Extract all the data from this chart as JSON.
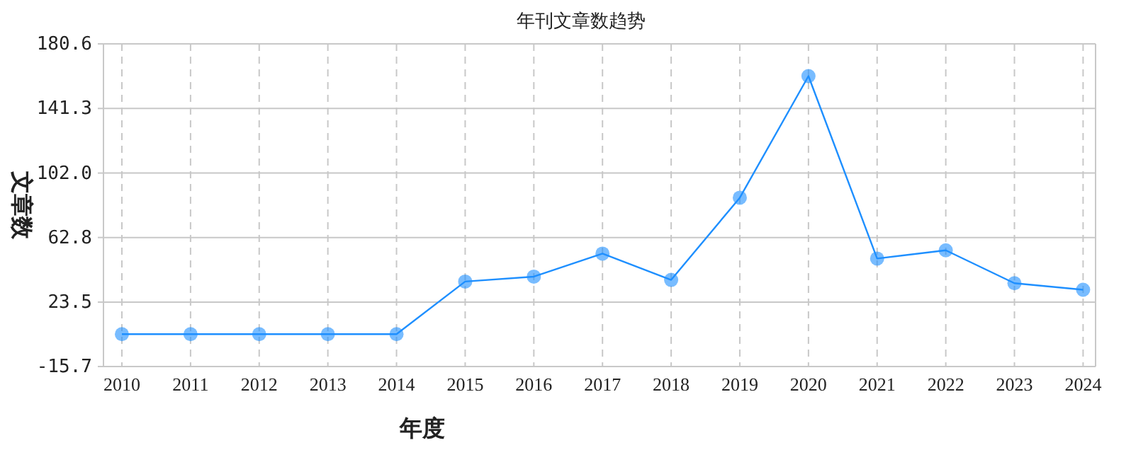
{
  "chart_data": {
    "type": "line",
    "title": "年刊文章数趋势",
    "xlabel": "年度",
    "ylabel": "文章数",
    "categories": [
      "2010",
      "2011",
      "2012",
      "2013",
      "2014",
      "2015",
      "2016",
      "2017",
      "2018",
      "2019",
      "2020",
      "2021",
      "2022",
      "2023",
      "2024"
    ],
    "series": [
      {
        "color": "#1e8fff",
        "values": [
          4,
          4,
          4,
          4,
          4,
          36,
          39,
          53,
          37,
          87,
          161,
          50,
          55,
          35,
          31
        ]
      }
    ],
    "ylim": [
      -15.7,
      180.6
    ],
    "yticks": [
      {
        "value": -15.7,
        "label": "-15.7"
      },
      {
        "value": 23.5,
        "label": "23.5"
      },
      {
        "value": 62.8,
        "label": "62.8"
      },
      {
        "value": 102,
        "label": "102.0"
      },
      {
        "value": 141.3,
        "label": "141.3"
      },
      {
        "value": 180.6,
        "label": "180.6"
      }
    ],
    "grid": true,
    "marker": "circle",
    "line_style": "solid"
  }
}
